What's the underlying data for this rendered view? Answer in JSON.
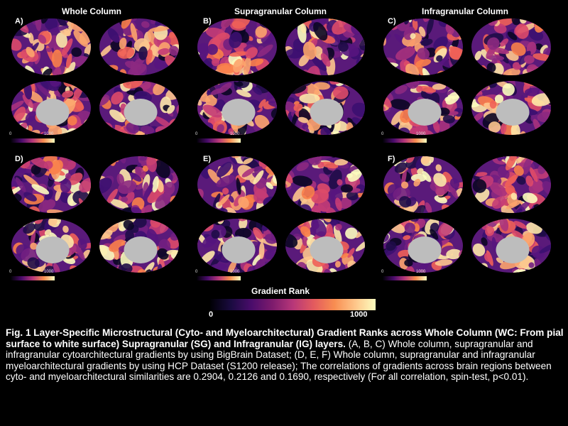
{
  "columns": [
    "Whole Column",
    "Supragranular Column",
    "Infragranular Column"
  ],
  "panels": [
    {
      "label": "A)",
      "scale_min": "0",
      "scale_max": "1000"
    },
    {
      "label": "B)",
      "scale_min": "0",
      "scale_max": "1000"
    },
    {
      "label": "C)",
      "scale_min": "0",
      "scale_max": "1000"
    },
    {
      "label": "D)",
      "scale_min": "0",
      "scale_max": "1000"
    },
    {
      "label": "E)",
      "scale_min": "0",
      "scale_max": "1000"
    },
    {
      "label": "F)",
      "scale_min": "0",
      "scale_max": "1000"
    }
  ],
  "colorbar": {
    "title": "Gradient Rank",
    "min": "0",
    "max": "1000"
  },
  "caption": {
    "bold": "Fig. 1 Layer-Specific Microstructural (Cyto- and Myeloarchitectural) Gradient Ranks across Whole Column (WC: From pial  surface to white surface) Supragranular (SG) and Infragranular (IG) layers.",
    "text": " (A, B, C) Whole column, supragranular and infragranular cytoarchitectural gradients by using BigBrain Dataset; (D, E, F) Whole column, supragranular and infragranular myeloarchitectural gradients by using HCP Dataset (S1200 release); The correlations of gradients across brain regions between cyto- and myeloarchitectural similarities are 0.2904, 0.2126 and 0.1690, respectively (For all correlation, spin-test, p<0.01)."
  },
  "colors": {
    "magma_low": "#000004",
    "magma_mid": "#b73779",
    "magma_high": "#fcfdbf"
  }
}
